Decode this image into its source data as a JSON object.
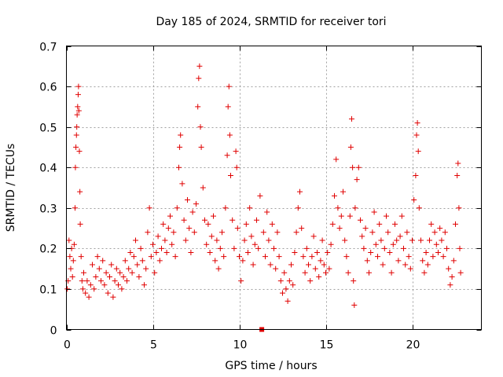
{
  "chart_data": {
    "type": "scatter",
    "title": "Day 185 of 2024, SRMTID for receiver tori",
    "xlabel": "GPS time / hours",
    "ylabel": "SRMTID / TECUs",
    "xlim": [
      0,
      24
    ],
    "ylim": [
      0,
      0.7
    ],
    "xticks": [
      0,
      5,
      10,
      15,
      20
    ],
    "xtick_labels": [
      "0",
      "5",
      "10",
      "15",
      "20"
    ],
    "yticks": [
      0,
      0.1,
      0.2,
      0.3,
      0.4,
      0.5,
      0.6,
      0.7
    ],
    "ytick_labels": [
      "0",
      "0.1",
      "0.2",
      "0.3",
      "0.4",
      "0.5",
      "0.6",
      "0.7"
    ],
    "grid": true,
    "marker": "plus",
    "color": "#e00000",
    "series": [
      {
        "name": "SRMTID",
        "points": [
          [
            0.05,
            0.1
          ],
          [
            0.1,
            0.12
          ],
          [
            0.15,
            0.22
          ],
          [
            0.2,
            0.18
          ],
          [
            0.25,
            0.15
          ],
          [
            0.3,
            0.2
          ],
          [
            0.35,
            0.13
          ],
          [
            0.4,
            0.17
          ],
          [
            0.45,
            0.21
          ],
          [
            0.5,
            0.3
          ],
          [
            0.52,
            0.4
          ],
          [
            0.55,
            0.45
          ],
          [
            0.58,
            0.48
          ],
          [
            0.6,
            0.5
          ],
          [
            0.62,
            0.53
          ],
          [
            0.65,
            0.55
          ],
          [
            0.68,
            0.58
          ],
          [
            0.7,
            0.6
          ],
          [
            0.72,
            0.54
          ],
          [
            0.75,
            0.44
          ],
          [
            0.78,
            0.34
          ],
          [
            0.8,
            0.26
          ],
          [
            0.85,
            0.18
          ],
          [
            0.9,
            0.12
          ],
          [
            0.95,
            0.1
          ],
          [
            1.0,
            0.14
          ],
          [
            1.1,
            0.09
          ],
          [
            1.2,
            0.12
          ],
          [
            1.3,
            0.08
          ],
          [
            1.4,
            0.11
          ],
          [
            1.5,
            0.16
          ],
          [
            1.6,
            0.1
          ],
          [
            1.7,
            0.13
          ],
          [
            1.8,
            0.18
          ],
          [
            1.9,
            0.15
          ],
          [
            2.0,
            0.12
          ],
          [
            2.1,
            0.17
          ],
          [
            2.2,
            0.11
          ],
          [
            2.3,
            0.14
          ],
          [
            2.4,
            0.09
          ],
          [
            2.5,
            0.13
          ],
          [
            2.6,
            0.16
          ],
          [
            2.7,
            0.08
          ],
          [
            2.8,
            0.12
          ],
          [
            2.9,
            0.15
          ],
          [
            3.0,
            0.11
          ],
          [
            3.1,
            0.14
          ],
          [
            3.2,
            0.1
          ],
          [
            3.3,
            0.13
          ],
          [
            3.4,
            0.17
          ],
          [
            3.5,
            0.12
          ],
          [
            3.6,
            0.15
          ],
          [
            3.7,
            0.19
          ],
          [
            3.8,
            0.14
          ],
          [
            3.9,
            0.18
          ],
          [
            4.0,
            0.22
          ],
          [
            4.1,
            0.16
          ],
          [
            4.2,
            0.13
          ],
          [
            4.3,
            0.2
          ],
          [
            4.4,
            0.17
          ],
          [
            4.5,
            0.11
          ],
          [
            4.6,
            0.15
          ],
          [
            4.7,
            0.24
          ],
          [
            4.8,
            0.3
          ],
          [
            4.9,
            0.18
          ],
          [
            5.0,
            0.21
          ],
          [
            5.1,
            0.14
          ],
          [
            5.2,
            0.19
          ],
          [
            5.3,
            0.23
          ],
          [
            5.4,
            0.17
          ],
          [
            5.5,
            0.2
          ],
          [
            5.6,
            0.26
          ],
          [
            5.7,
            0.22
          ],
          [
            5.8,
            0.19
          ],
          [
            5.9,
            0.25
          ],
          [
            6.0,
            0.28
          ],
          [
            6.1,
            0.21
          ],
          [
            6.2,
            0.24
          ],
          [
            6.3,
            0.18
          ],
          [
            6.4,
            0.3
          ],
          [
            6.5,
            0.4
          ],
          [
            6.55,
            0.45
          ],
          [
            6.6,
            0.48
          ],
          [
            6.7,
            0.36
          ],
          [
            6.8,
            0.27
          ],
          [
            6.9,
            0.22
          ],
          [
            7.0,
            0.32
          ],
          [
            7.1,
            0.25
          ],
          [
            7.2,
            0.19
          ],
          [
            7.3,
            0.29
          ],
          [
            7.4,
            0.24
          ],
          [
            7.5,
            0.31
          ],
          [
            7.6,
            0.55
          ],
          [
            7.65,
            0.62
          ],
          [
            7.7,
            0.65
          ],
          [
            7.75,
            0.5
          ],
          [
            7.8,
            0.45
          ],
          [
            7.9,
            0.35
          ],
          [
            8.0,
            0.27
          ],
          [
            8.1,
            0.21
          ],
          [
            8.2,
            0.26
          ],
          [
            8.3,
            0.19
          ],
          [
            8.4,
            0.23
          ],
          [
            8.5,
            0.28
          ],
          [
            8.6,
            0.17
          ],
          [
            8.7,
            0.22
          ],
          [
            8.8,
            0.15
          ],
          [
            8.9,
            0.2
          ],
          [
            9.0,
            0.24
          ],
          [
            9.1,
            0.18
          ],
          [
            9.2,
            0.3
          ],
          [
            9.3,
            0.43
          ],
          [
            9.35,
            0.55
          ],
          [
            9.4,
            0.6
          ],
          [
            9.45,
            0.48
          ],
          [
            9.5,
            0.38
          ],
          [
            9.6,
            0.27
          ],
          [
            9.7,
            0.2
          ],
          [
            9.8,
            0.44
          ],
          [
            9.85,
            0.4
          ],
          [
            9.9,
            0.25
          ],
          [
            10.0,
            0.18
          ],
          [
            10.1,
            0.12
          ],
          [
            10.2,
            0.17
          ],
          [
            10.3,
            0.22
          ],
          [
            10.4,
            0.26
          ],
          [
            10.5,
            0.19
          ],
          [
            10.6,
            0.3
          ],
          [
            10.7,
            0.23
          ],
          [
            10.8,
            0.16
          ],
          [
            10.9,
            0.21
          ],
          [
            11.0,
            0.27
          ],
          [
            11.1,
            0.2
          ],
          [
            11.2,
            0.33
          ],
          [
            11.4,
            0.24
          ],
          [
            11.5,
            0.18
          ],
          [
            11.6,
            0.29
          ],
          [
            11.7,
            0.22
          ],
          [
            11.8,
            0.16
          ],
          [
            11.9,
            0.26
          ],
          [
            12.0,
            0.2
          ],
          [
            12.1,
            0.15
          ],
          [
            12.2,
            0.24
          ],
          [
            12.3,
            0.18
          ],
          [
            12.4,
            0.12
          ],
          [
            12.5,
            0.09
          ],
          [
            12.6,
            0.14
          ],
          [
            12.7,
            0.1
          ],
          [
            12.8,
            0.07
          ],
          [
            12.9,
            0.12
          ],
          [
            13.0,
            0.16
          ],
          [
            13.1,
            0.11
          ],
          [
            13.2,
            0.19
          ],
          [
            13.3,
            0.24
          ],
          [
            13.4,
            0.3
          ],
          [
            13.5,
            0.34
          ],
          [
            13.6,
            0.25
          ],
          [
            13.7,
            0.18
          ],
          [
            13.8,
            0.14
          ],
          [
            13.9,
            0.2
          ],
          [
            14.0,
            0.16
          ],
          [
            14.1,
            0.12
          ],
          [
            14.2,
            0.18
          ],
          [
            14.3,
            0.23
          ],
          [
            14.4,
            0.15
          ],
          [
            14.5,
            0.19
          ],
          [
            14.6,
            0.13
          ],
          [
            14.7,
            0.17
          ],
          [
            14.8,
            0.22
          ],
          [
            14.9,
            0.16
          ],
          [
            15.0,
            0.14
          ],
          [
            15.1,
            0.19
          ],
          [
            15.2,
            0.15
          ],
          [
            15.3,
            0.21
          ],
          [
            15.4,
            0.26
          ],
          [
            15.5,
            0.33
          ],
          [
            15.6,
            0.42
          ],
          [
            15.7,
            0.3
          ],
          [
            15.8,
            0.25
          ],
          [
            15.9,
            0.28
          ],
          [
            16.0,
            0.34
          ],
          [
            16.1,
            0.22
          ],
          [
            16.2,
            0.18
          ],
          [
            16.3,
            0.14
          ],
          [
            16.4,
            0.28
          ],
          [
            16.45,
            0.45
          ],
          [
            16.5,
            0.52
          ],
          [
            16.55,
            0.4
          ],
          [
            16.6,
            0.12
          ],
          [
            16.65,
            0.06
          ],
          [
            16.7,
            0.3
          ],
          [
            16.8,
            0.37
          ],
          [
            16.9,
            0.4
          ],
          [
            17.0,
            0.27
          ],
          [
            17.1,
            0.23
          ],
          [
            17.2,
            0.2
          ],
          [
            17.3,
            0.25
          ],
          [
            17.4,
            0.17
          ],
          [
            17.5,
            0.14
          ],
          [
            17.6,
            0.19
          ],
          [
            17.7,
            0.24
          ],
          [
            17.8,
            0.29
          ],
          [
            17.9,
            0.21
          ],
          [
            18.0,
            0.18
          ],
          [
            18.1,
            0.26
          ],
          [
            18.2,
            0.22
          ],
          [
            18.3,
            0.16
          ],
          [
            18.4,
            0.2
          ],
          [
            18.5,
            0.28
          ],
          [
            18.6,
            0.24
          ],
          [
            18.7,
            0.19
          ],
          [
            18.8,
            0.14
          ],
          [
            18.9,
            0.21
          ],
          [
            19.0,
            0.26
          ],
          [
            19.1,
            0.22
          ],
          [
            19.2,
            0.17
          ],
          [
            19.3,
            0.23
          ],
          [
            19.4,
            0.28
          ],
          [
            19.5,
            0.2
          ],
          [
            19.6,
            0.16
          ],
          [
            19.7,
            0.24
          ],
          [
            19.8,
            0.18
          ],
          [
            19.9,
            0.15
          ],
          [
            20.0,
            0.22
          ],
          [
            20.1,
            0.32
          ],
          [
            20.2,
            0.38
          ],
          [
            20.25,
            0.48
          ],
          [
            20.3,
            0.51
          ],
          [
            20.35,
            0.44
          ],
          [
            20.4,
            0.3
          ],
          [
            20.5,
            0.22
          ],
          [
            20.6,
            0.17
          ],
          [
            20.7,
            0.14
          ],
          [
            20.8,
            0.19
          ],
          [
            20.9,
            0.16
          ],
          [
            21.0,
            0.22
          ],
          [
            21.1,
            0.26
          ],
          [
            21.2,
            0.18
          ],
          [
            21.3,
            0.24
          ],
          [
            21.4,
            0.21
          ],
          [
            21.5,
            0.19
          ],
          [
            21.6,
            0.25
          ],
          [
            21.7,
            0.22
          ],
          [
            21.8,
            0.18
          ],
          [
            21.9,
            0.24
          ],
          [
            22.0,
            0.2
          ],
          [
            22.1,
            0.15
          ],
          [
            22.2,
            0.11
          ],
          [
            22.3,
            0.13
          ],
          [
            22.4,
            0.17
          ],
          [
            22.5,
            0.26
          ],
          [
            22.6,
            0.38
          ],
          [
            22.65,
            0.41
          ],
          [
            22.7,
            0.3
          ],
          [
            22.75,
            0.2
          ],
          [
            22.8,
            0.14
          ]
        ]
      }
    ],
    "special_markers": [
      {
        "x": 11.3,
        "y": 0.0,
        "shape": "square"
      }
    ]
  }
}
